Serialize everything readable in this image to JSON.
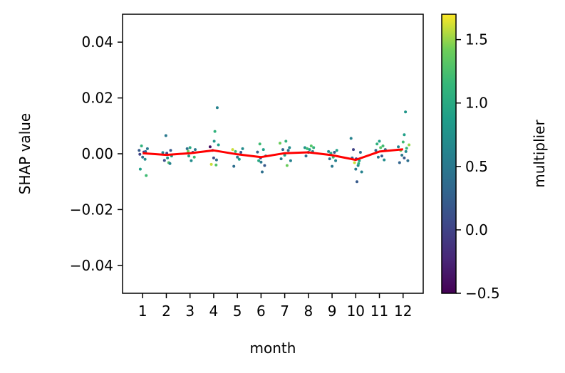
{
  "chart_data": {
    "type": "scatter",
    "title": "",
    "xlabel": "month",
    "ylabel": "SHAP value",
    "xlim": [
      0.15,
      12.85
    ],
    "ylim": [
      -0.05,
      0.05
    ],
    "x_ticks": [
      1,
      2,
      3,
      4,
      5,
      6,
      7,
      8,
      9,
      10,
      11,
      12
    ],
    "x_tick_labels": [
      "1",
      "2",
      "3",
      "4",
      "5",
      "6",
      "7",
      "8",
      "9",
      "10",
      "11",
      "12"
    ],
    "y_ticks": [
      -0.04,
      -0.02,
      0.0,
      0.02,
      0.04
    ],
    "y_tick_labels": [
      "−0.04",
      "−0.02",
      "0.00",
      "0.02",
      "0.04"
    ],
    "grid": false,
    "colorbar": {
      "label": "multiplier",
      "range": [
        -0.5,
        1.7
      ],
      "ticks": [
        -0.5,
        0.0,
        0.5,
        1.0,
        1.5
      ],
      "tick_labels": [
        "−0.5",
        "0.0",
        "0.5",
        "1.0",
        "1.5"
      ],
      "colormap": "viridis"
    },
    "mean_line": {
      "color": "#ff0000",
      "x": [
        1,
        2,
        3,
        4,
        5,
        6,
        7,
        8,
        9,
        10,
        11,
        12
      ],
      "y": [
        0.0002,
        -0.0004,
        0.0002,
        0.0012,
        -0.0002,
        -0.0012,
        0.0002,
        0.0005,
        -0.0005,
        -0.0022,
        0.0008,
        0.0016
      ]
    },
    "points": [
      {
        "x": 0.85,
        "y": 0.0012,
        "c": 0.2
      },
      {
        "x": 0.9,
        "y": -0.0055,
        "c": 0.9
      },
      {
        "x": 0.95,
        "y": 0.0028,
        "c": 1.1
      },
      {
        "x": 1.0,
        "y": -0.0012,
        "c": 0.4
      },
      {
        "x": 1.05,
        "y": 0.0006,
        "c": -0.1
      },
      {
        "x": 1.1,
        "y": -0.002,
        "c": 0.7
      },
      {
        "x": 1.15,
        "y": -0.0078,
        "c": 1.2
      },
      {
        "x": 1.2,
        "y": 0.0018,
        "c": 0.5
      },
      {
        "x": 0.88,
        "y": -0.0002,
        "c": 0.0
      },
      {
        "x": 1.12,
        "y": 0.0008,
        "c": 0.3
      },
      {
        "x": 1.85,
        "y": 0.0004,
        "c": 0.6
      },
      {
        "x": 1.92,
        "y": -0.0024,
        "c": 0.1
      },
      {
        "x": 1.98,
        "y": 0.0065,
        "c": 0.5
      },
      {
        "x": 2.05,
        "y": -0.0015,
        "c": 0.8
      },
      {
        "x": 2.1,
        "y": -0.0032,
        "c": 1.3
      },
      {
        "x": 2.18,
        "y": 0.0012,
        "c": 0.2
      },
      {
        "x": 2.22,
        "y": -0.0008,
        "c": 0.9
      },
      {
        "x": 2.02,
        "y": 0.0002,
        "c": 0.0
      },
      {
        "x": 2.15,
        "y": -0.0035,
        "c": 0.6
      },
      {
        "x": 2.88,
        "y": 0.0018,
        "c": 0.4
      },
      {
        "x": 2.95,
        "y": -0.0008,
        "c": 0.9
      },
      {
        "x": 3.0,
        "y": 0.0022,
        "c": 1.0
      },
      {
        "x": 3.05,
        "y": -0.0025,
        "c": 0.7
      },
      {
        "x": 3.12,
        "y": 0.0005,
        "c": 0.2
      },
      {
        "x": 3.18,
        "y": -0.0012,
        "c": 1.2
      },
      {
        "x": 3.22,
        "y": 0.0015,
        "c": 0.5
      },
      {
        "x": 2.92,
        "y": 0.0009,
        "c": 1.4
      },
      {
        "x": 3.85,
        "y": 0.0025,
        "c": -0.4
      },
      {
        "x": 3.9,
        "y": -0.0038,
        "c": 1.6
      },
      {
        "x": 3.95,
        "y": 0.0012,
        "c": 0.3
      },
      {
        "x": 4.0,
        "y": -0.0015,
        "c": 0.1
      },
      {
        "x": 4.05,
        "y": 0.008,
        "c": 1.1
      },
      {
        "x": 4.1,
        "y": -0.004,
        "c": 1.3
      },
      {
        "x": 4.15,
        "y": 0.0165,
        "c": 0.6
      },
      {
        "x": 4.2,
        "y": 0.0032,
        "c": 0.9
      },
      {
        "x": 4.12,
        "y": -0.0022,
        "c": 0.4
      },
      {
        "x": 4.02,
        "y": 0.0045,
        "c": 0.8
      },
      {
        "x": 4.8,
        "y": 0.0015,
        "c": 1.6
      },
      {
        "x": 4.85,
        "y": -0.0045,
        "c": 0.4
      },
      {
        "x": 4.92,
        "y": 0.0008,
        "c": 1.2
      },
      {
        "x": 5.0,
        "y": -0.0012,
        "c": 0.5
      },
      {
        "x": 5.08,
        "y": -0.002,
        "c": 0.9
      },
      {
        "x": 5.15,
        "y": 0.0005,
        "c": 0.2
      },
      {
        "x": 5.22,
        "y": 0.0018,
        "c": 0.7
      },
      {
        "x": 5.85,
        "y": 0.0006,
        "c": 0.3
      },
      {
        "x": 5.9,
        "y": -0.0025,
        "c": 1.0
      },
      {
        "x": 5.95,
        "y": 0.0035,
        "c": 1.2
      },
      {
        "x": 6.0,
        "y": -0.003,
        "c": 0.5
      },
      {
        "x": 6.05,
        "y": -0.0065,
        "c": 0.4
      },
      {
        "x": 6.1,
        "y": 0.0015,
        "c": 0.9
      },
      {
        "x": 6.15,
        "y": -0.0042,
        "c": 0.2
      },
      {
        "x": 6.2,
        "y": -0.0008,
        "c": 0.6
      },
      {
        "x": 5.98,
        "y": -0.0015,
        "c": 0.0
      },
      {
        "x": 6.8,
        "y": 0.0038,
        "c": 1.4
      },
      {
        "x": 6.85,
        "y": -0.0018,
        "c": 0.5
      },
      {
        "x": 6.92,
        "y": 0.0015,
        "c": 0.3
      },
      {
        "x": 7.0,
        "y": -0.0005,
        "c": 0.9
      },
      {
        "x": 7.05,
        "y": 0.0045,
        "c": 1.1
      },
      {
        "x": 7.1,
        "y": -0.0042,
        "c": 1.4
      },
      {
        "x": 7.15,
        "y": 0.0012,
        "c": 0.4
      },
      {
        "x": 7.2,
        "y": 0.0022,
        "c": 0.7
      },
      {
        "x": 7.25,
        "y": -0.0025,
        "c": 0.6
      },
      {
        "x": 7.85,
        "y": 0.0022,
        "c": 0.8
      },
      {
        "x": 7.9,
        "y": -0.0008,
        "c": 0.4
      },
      {
        "x": 7.95,
        "y": 0.0018,
        "c": 1.2
      },
      {
        "x": 8.0,
        "y": 0.0005,
        "c": 0.1
      },
      {
        "x": 8.05,
        "y": 0.0015,
        "c": 0.9
      },
      {
        "x": 8.12,
        "y": 0.0028,
        "c": 1.3
      },
      {
        "x": 8.18,
        "y": 0.0008,
        "c": 0.6
      },
      {
        "x": 8.22,
        "y": 0.0022,
        "c": 1.1
      },
      {
        "x": 8.85,
        "y": 0.0008,
        "c": 0.7
      },
      {
        "x": 8.9,
        "y": -0.0018,
        "c": 0.4
      },
      {
        "x": 8.95,
        "y": 0.0002,
        "c": 1.0
      },
      {
        "x": 9.0,
        "y": -0.0045,
        "c": 0.5
      },
      {
        "x": 9.05,
        "y": -0.0012,
        "c": 1.2
      },
      {
        "x": 9.1,
        "y": 0.0005,
        "c": 0.2
      },
      {
        "x": 9.15,
        "y": -0.0025,
        "c": 0.6
      },
      {
        "x": 9.2,
        "y": 0.0012,
        "c": 0.9
      },
      {
        "x": 9.8,
        "y": 0.0055,
        "c": 0.6
      },
      {
        "x": 9.85,
        "y": -0.0015,
        "c": 0.3
      },
      {
        "x": 9.9,
        "y": 0.0015,
        "c": 0.0
      },
      {
        "x": 9.95,
        "y": -0.0032,
        "c": 1.6
      },
      {
        "x": 10.0,
        "y": -0.0055,
        "c": 0.5
      },
      {
        "x": 10.05,
        "y": -0.01,
        "c": 0.2
      },
      {
        "x": 10.1,
        "y": -0.0042,
        "c": 0.7
      },
      {
        "x": 10.15,
        "y": -0.0025,
        "c": 0.9
      },
      {
        "x": 10.2,
        "y": 0.0005,
        "c": 0.4
      },
      {
        "x": 10.25,
        "y": -0.0065,
        "c": 0.6
      },
      {
        "x": 10.02,
        "y": -0.0018,
        "c": -0.2
      },
      {
        "x": 10.12,
        "y": -0.0035,
        "c": 1.1
      },
      {
        "x": 10.85,
        "y": 0.0012,
        "c": 0.3
      },
      {
        "x": 10.9,
        "y": 0.0035,
        "c": 1.1
      },
      {
        "x": 10.95,
        "y": -0.0012,
        "c": 0.5
      },
      {
        "x": 11.0,
        "y": 0.0045,
        "c": 0.9
      },
      {
        "x": 11.05,
        "y": 0.0022,
        "c": 1.3
      },
      {
        "x": 11.1,
        "y": -0.0008,
        "c": 0.2
      },
      {
        "x": 11.15,
        "y": 0.0028,
        "c": 1.2
      },
      {
        "x": 11.2,
        "y": -0.0022,
        "c": 0.7
      },
      {
        "x": 11.25,
        "y": 0.0015,
        "c": 0.4
      },
      {
        "x": 11.8,
        "y": 0.0025,
        "c": 0.6
      },
      {
        "x": 11.85,
        "y": -0.0032,
        "c": 0.3
      },
      {
        "x": 11.9,
        "y": 0.0012,
        "c": 1.4
      },
      {
        "x": 11.95,
        "y": -0.0005,
        "c": 0.5
      },
      {
        "x": 12.0,
        "y": 0.0042,
        "c": 1.2
      },
      {
        "x": 12.05,
        "y": 0.0068,
        "c": 0.9
      },
      {
        "x": 12.1,
        "y": 0.015,
        "c": 0.8
      },
      {
        "x": 12.15,
        "y": 0.002,
        "c": 1.1
      },
      {
        "x": 12.2,
        "y": -0.0025,
        "c": 0.4
      },
      {
        "x": 12.25,
        "y": 0.0032,
        "c": 1.5
      },
      {
        "x": 12.05,
        "y": -0.0015,
        "c": 0.2
      },
      {
        "x": 12.12,
        "y": 0.0008,
        "c": 0.7
      }
    ]
  }
}
